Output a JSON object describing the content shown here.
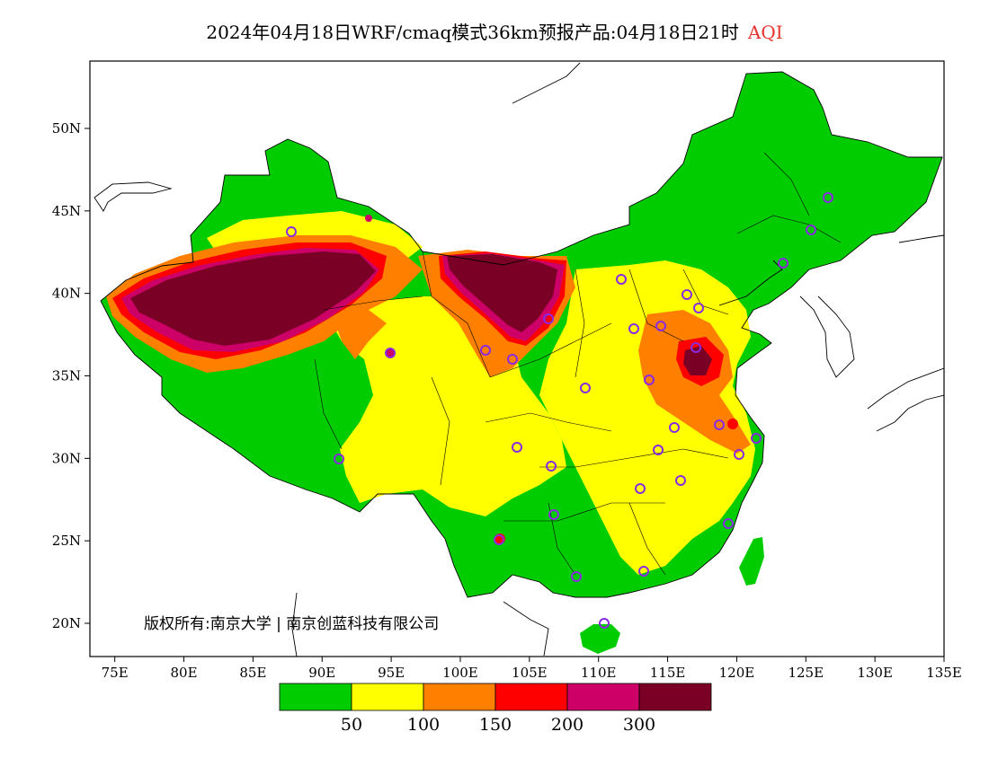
{
  "title": {
    "main": "2024年04月18日WRF/cmaq模式36km预报产品:04月18日21时",
    "variable": "AQI"
  },
  "axes": {
    "lon_ticks": [
      "75E",
      "80E",
      "85E",
      "90E",
      "95E",
      "100E",
      "105E",
      "110E",
      "115E",
      "120E",
      "125E",
      "130E",
      "135E"
    ],
    "lat_ticks": [
      "20N",
      "25N",
      "30N",
      "35N",
      "40N",
      "45N",
      "50N"
    ]
  },
  "copyright": "版权所有:南京大学 | 南京创蓝科技有限公司",
  "legend": {
    "colors": [
      "#00cc00",
      "#ffff00",
      "#ff8000",
      "#ff0000",
      "#cc0066",
      "#7a0026"
    ],
    "labels": [
      "50",
      "100",
      "150",
      "200",
      "300"
    ]
  },
  "colors": {
    "good": "#00cc00",
    "moderate": "#ffff00",
    "sensitive": "#ff8000",
    "unhealthy": "#ff0000",
    "very_unhealthy": "#cc0066",
    "hazardous": "#7a0026",
    "station_marker": "#8a2be2"
  }
}
